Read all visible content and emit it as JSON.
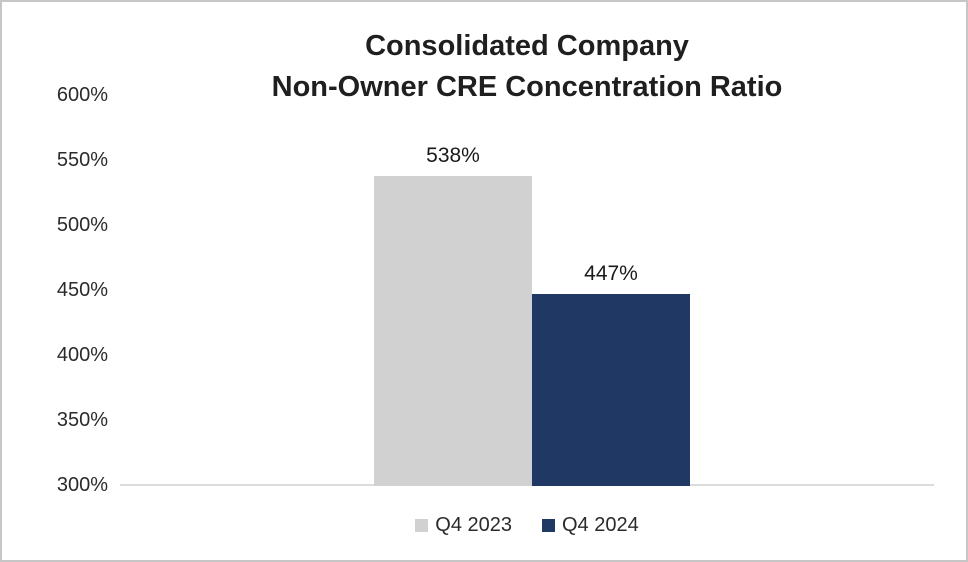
{
  "chart_data": {
    "type": "bar",
    "title_lines": [
      "Consolidated Company",
      "Non-Owner CRE Concentration Ratio"
    ],
    "title": "Consolidated Company Non-Owner CRE Concentration Ratio",
    "categories": [
      "Consolidated Company"
    ],
    "series": [
      {
        "name": "Q4 2023",
        "value": 538,
        "label": "538%",
        "color": "#d1d1d1"
      },
      {
        "name": "Q4 2024",
        "value": 447,
        "label": "447%",
        "color": "#1f3864"
      }
    ],
    "ylabel": "",
    "xlabel": "",
    "ylim": [
      300,
      600
    ],
    "ytick_step": 50,
    "yticks": [
      {
        "value": 600,
        "label": "600%"
      },
      {
        "value": 550,
        "label": "550%"
      },
      {
        "value": 500,
        "label": "500%"
      },
      {
        "value": 450,
        "label": "450%"
      },
      {
        "value": 400,
        "label": "400%"
      },
      {
        "value": 350,
        "label": "350%"
      },
      {
        "value": 300,
        "label": "300%"
      }
    ],
    "grid": false,
    "legend_position": "bottom",
    "axis_line_color": "#dcdcdc",
    "text_color": "#1f1f1f"
  }
}
